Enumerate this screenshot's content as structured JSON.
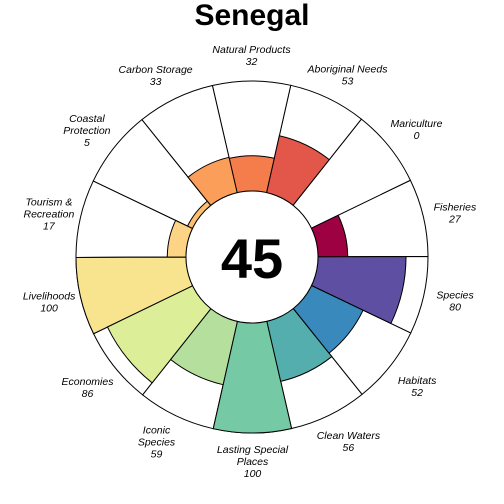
{
  "chart_data": {
    "type": "flower",
    "title": "Senegal",
    "center_score": "45",
    "rlim": [
      0,
      100
    ],
    "petals": [
      {
        "name": "Fisheries",
        "label_lines": [
          "Fisheries"
        ],
        "value": 27,
        "color": "#9e0142"
      },
      {
        "name": "Mariculture",
        "label_lines": [
          "Mariculture"
        ],
        "value": 0,
        "color": "#c41e47"
      },
      {
        "name": "Aboriginal Needs",
        "label_lines": [
          "Aboriginal Needs"
        ],
        "value": 53,
        "color": "#e2574a"
      },
      {
        "name": "Natural Products",
        "label_lines": [
          "Natural Products"
        ],
        "value": 32,
        "color": "#f47d4b"
      },
      {
        "name": "Carbon Storage",
        "label_lines": [
          "Carbon Storage"
        ],
        "value": 33,
        "color": "#fb9e5a"
      },
      {
        "name": "Coastal Protection",
        "label_lines": [
          "Coastal",
          "Protection"
        ],
        "value": 5,
        "color": "#fdbe6e"
      },
      {
        "name": "Tourism & Recreation",
        "label_lines": [
          "Tourism &",
          "Recreation"
        ],
        "value": 17,
        "color": "#fdd385"
      },
      {
        "name": "Livelihoods",
        "label_lines": [
          "Livelihoods"
        ],
        "value": 100,
        "color": "#f8e48f"
      },
      {
        "name": "Economies",
        "label_lines": [
          "Economies"
        ],
        "value": 86,
        "color": "#dcef98"
      },
      {
        "name": "Iconic Species",
        "label_lines": [
          "Iconic",
          "Species"
        ],
        "value": 59,
        "color": "#b4df9d"
      },
      {
        "name": "Lasting Special Places",
        "label_lines": [
          "Lasting Special",
          "Places"
        ],
        "value": 100,
        "color": "#75c9a4"
      },
      {
        "name": "Clean Waters",
        "label_lines": [
          "Clean Waters"
        ],
        "value": 56,
        "color": "#54aead"
      },
      {
        "name": "Habitats",
        "label_lines": [
          "Habitats"
        ],
        "value": 52,
        "color": "#3a89bd"
      },
      {
        "name": "Species",
        "label_lines": [
          "Species"
        ],
        "value": 80,
        "color": "#5e4fa2"
      }
    ]
  }
}
